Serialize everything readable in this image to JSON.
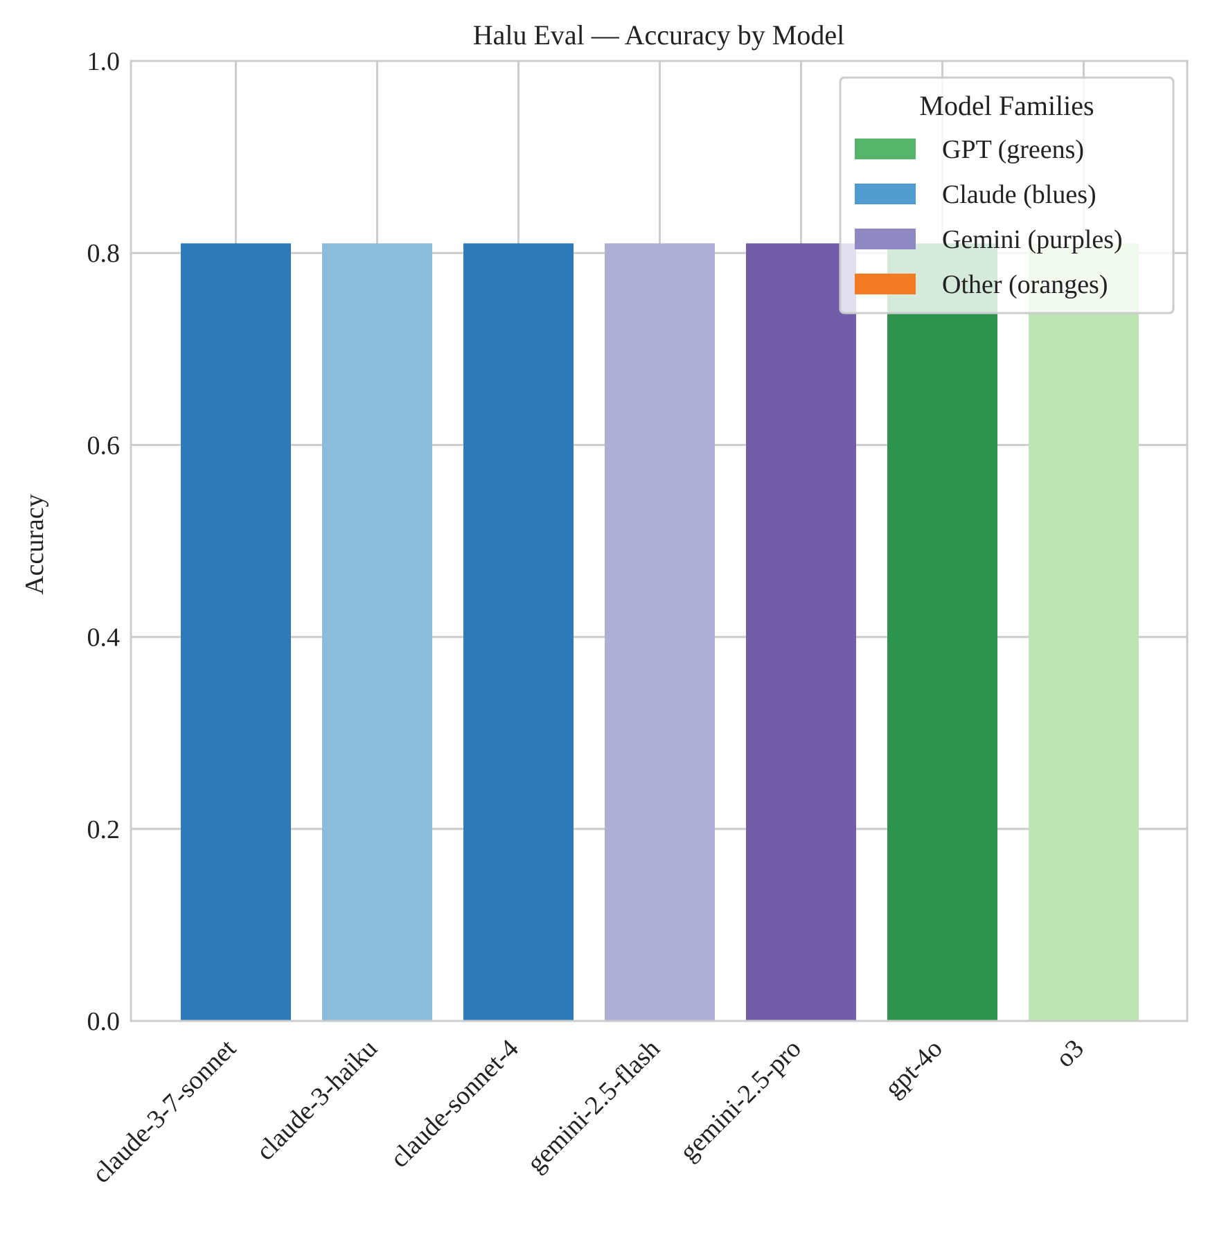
{
  "chart_data": {
    "type": "bar",
    "title": "Halu Eval — Accuracy by Model",
    "xlabel": "",
    "ylabel": "Accuracy",
    "ylim": [
      0,
      1.0
    ],
    "yticks": [
      "0.0",
      "0.2",
      "0.4",
      "0.6",
      "0.8",
      "1.0"
    ],
    "grid": true,
    "categories": [
      "claude-3-7-sonnet",
      "claude-3-haiku",
      "claude-sonnet-4",
      "gemini-2.5-flash",
      "gemini-2.5-pro",
      "gpt-4o",
      "o3"
    ],
    "values": [
      0.81,
      0.81,
      0.81,
      0.81,
      0.81,
      0.81,
      0.81
    ],
    "bar_colors": [
      "#2c7bb8",
      "#8abcdb",
      "#2c7bb8",
      "#afaed5",
      "#715ea9",
      "#2e944d",
      "#bde4b5"
    ],
    "legend": {
      "title": "Model Families",
      "placement": "top-right",
      "entries": [
        {
          "label": "GPT (greens)",
          "color": "#57b46b"
        },
        {
          "label": "Claude (blues)",
          "color": "#519cce"
        },
        {
          "label": "Gemini (purples)",
          "color": "#9089c1"
        },
        {
          "label": "Other (oranges)",
          "color": "#f47b24"
        }
      ]
    }
  }
}
